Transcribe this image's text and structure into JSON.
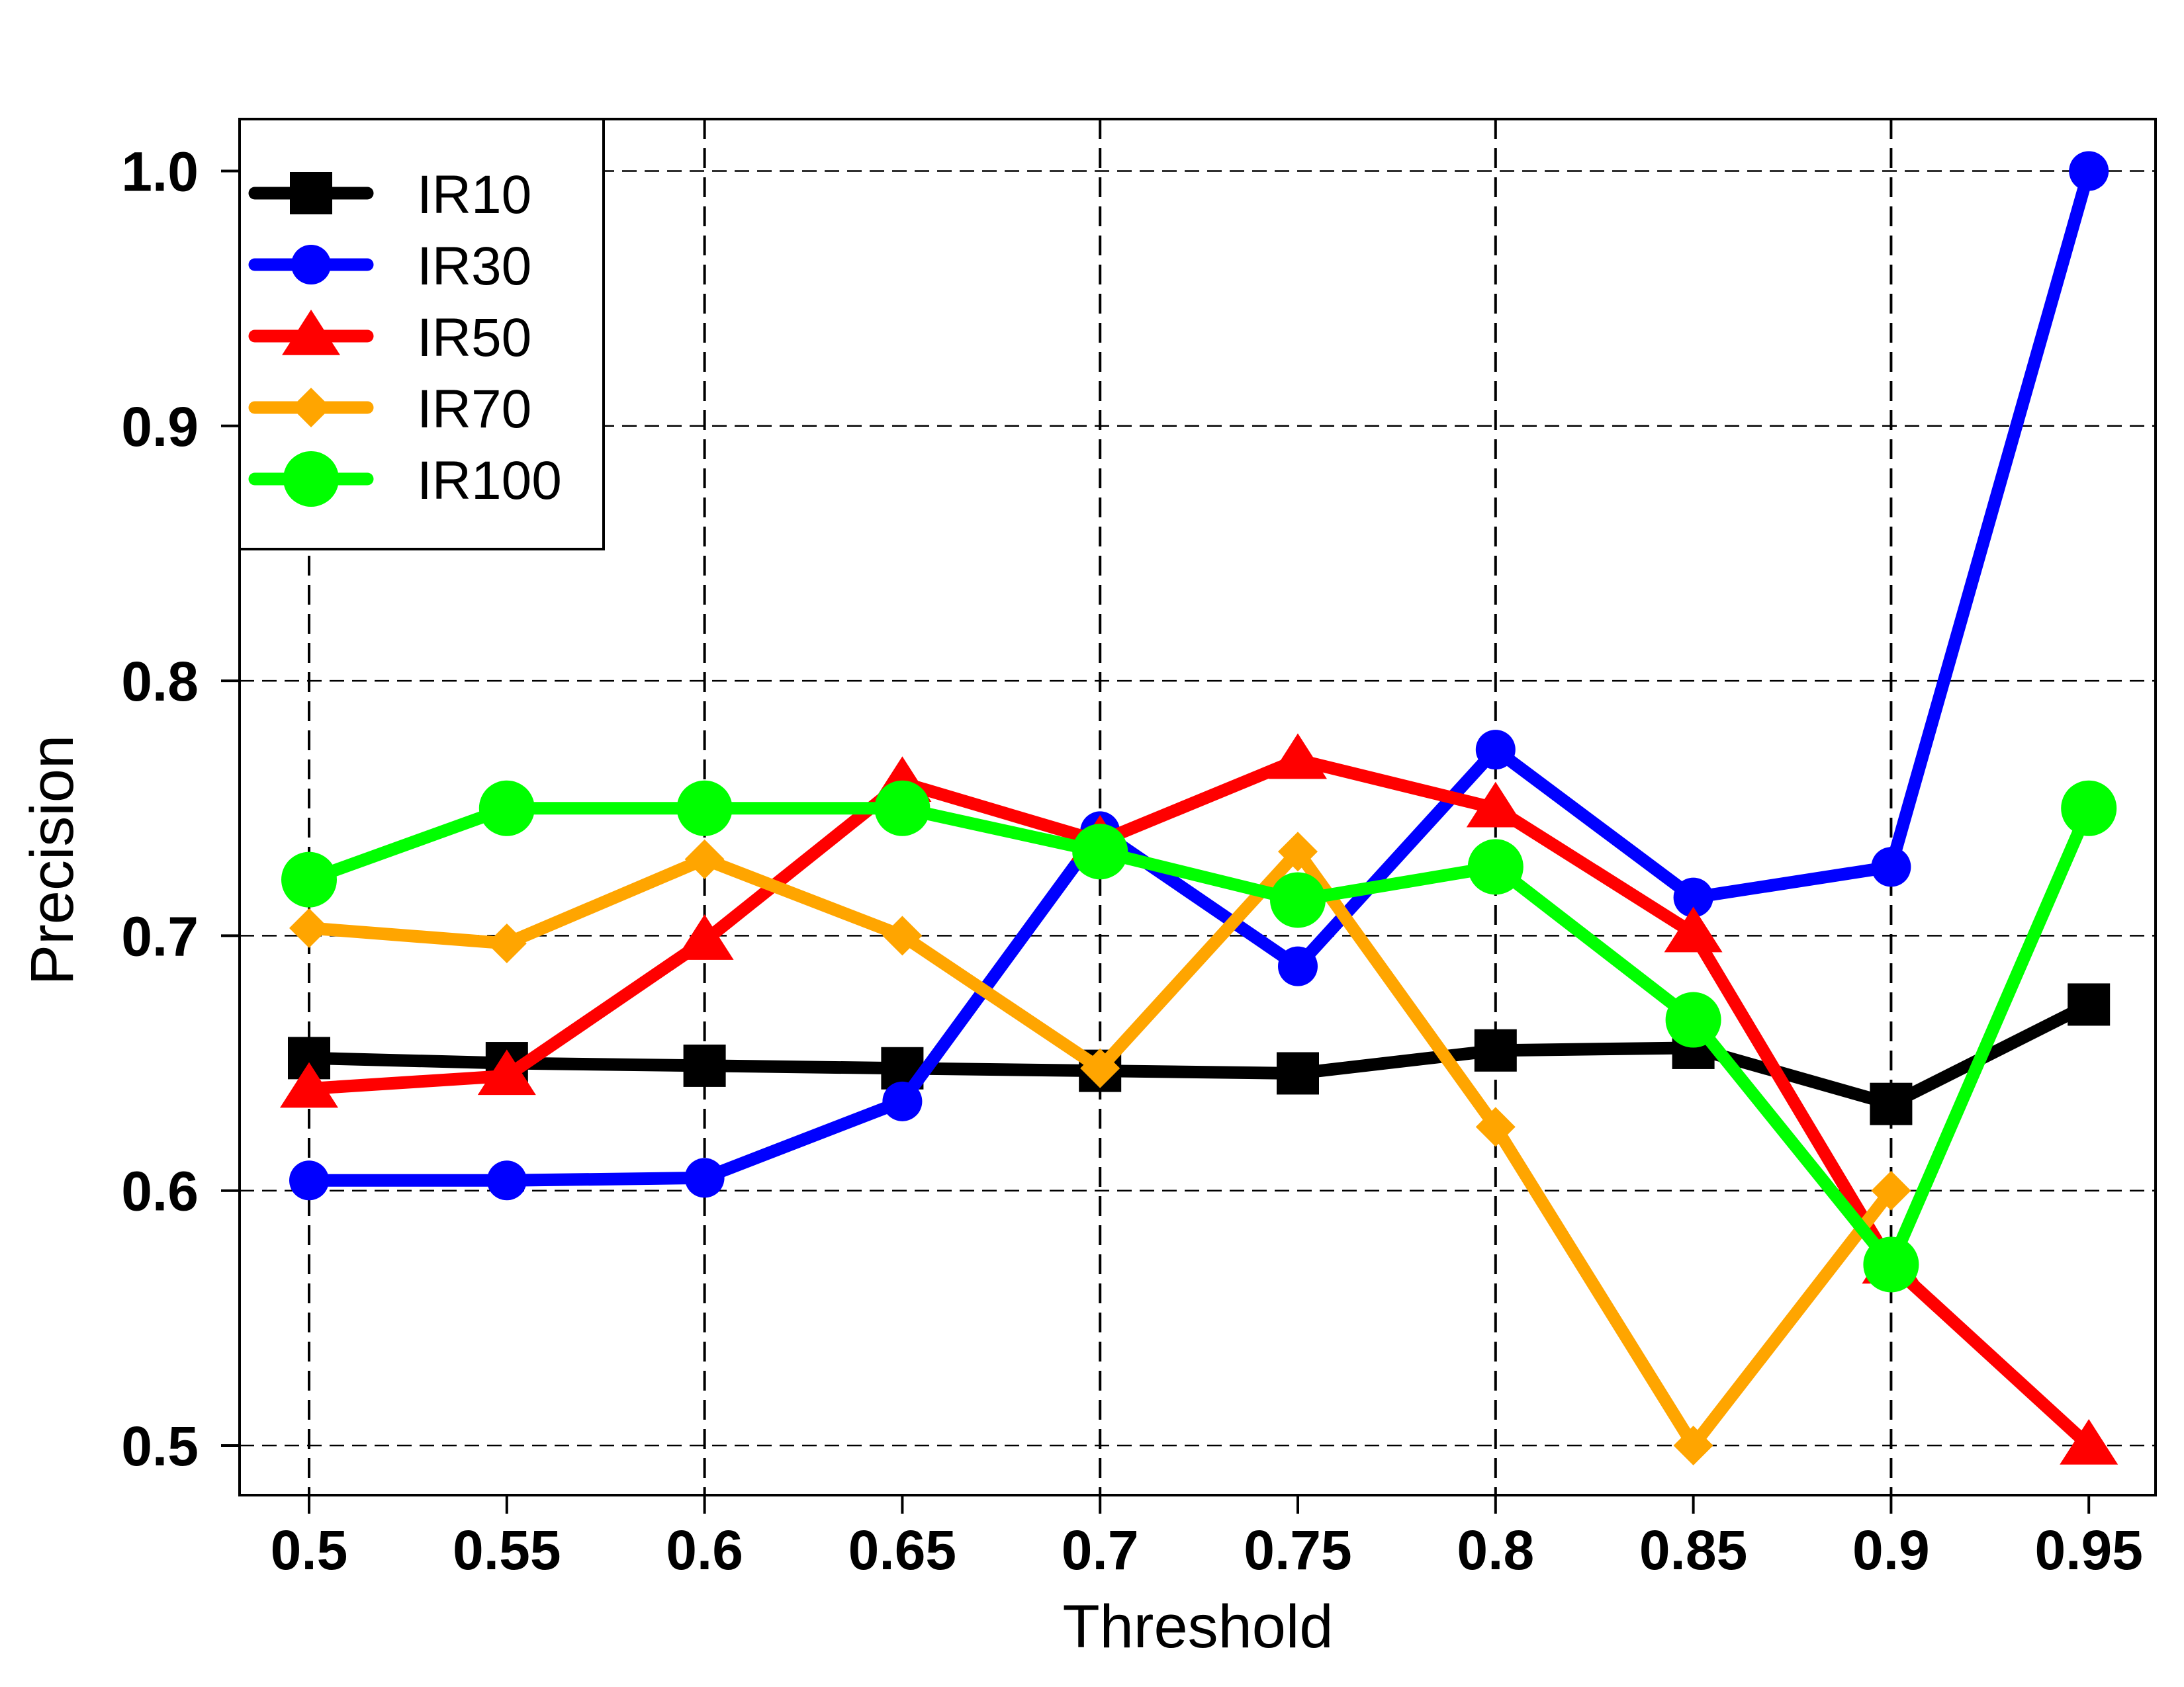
{
  "chart_data": {
    "type": "line",
    "title": "",
    "xlabel": "Threshold",
    "ylabel": "Precision",
    "x": [
      0.5,
      0.55,
      0.6,
      0.65,
      0.7,
      0.75,
      0.8,
      0.85,
      0.9,
      0.95
    ],
    "x_tick_labels": [
      "0.5",
      "0.55",
      "0.6",
      "0.65",
      "0.7",
      "0.75",
      "0.8",
      "0.85",
      "0.9",
      "0.95"
    ],
    "y_ticks": [
      0.5,
      0.6,
      0.7,
      0.8,
      0.9,
      1.0
    ],
    "y_tick_labels": [
      "0.5",
      "0.6",
      "0.7",
      "0.8",
      "0.9",
      "1.0"
    ],
    "ylim": [
      0.48,
      1.03
    ],
    "grid": true,
    "legend_position": "top-left",
    "series": [
      {
        "name": "IR10",
        "color": "#000000",
        "marker": "square",
        "values": [
          0.652,
          0.65,
          0.649,
          0.648,
          0.647,
          0.646,
          0.655,
          0.656,
          0.634,
          0.673
        ]
      },
      {
        "name": "IR30",
        "color": "#0000ff",
        "marker": "circle",
        "values": [
          0.604,
          0.604,
          0.605,
          0.635,
          0.741,
          0.688,
          0.773,
          0.715,
          0.727,
          1.0
        ]
      },
      {
        "name": "IR50",
        "color": "#ff0000",
        "marker": "triangle",
        "values": [
          0.64,
          0.645,
          0.698,
          0.76,
          0.737,
          0.769,
          0.75,
          0.701,
          0.571,
          0.5
        ]
      },
      {
        "name": "IR70",
        "color": "#ffa500",
        "marker": "diamond",
        "values": [
          0.703,
          0.697,
          0.73,
          0.7,
          0.648,
          0.733,
          0.625,
          0.5,
          0.6,
          null
        ]
      },
      {
        "name": "IR100",
        "color": "#00ff00",
        "marker": "big-circle",
        "values": [
          0.722,
          0.75,
          0.75,
          0.75,
          0.733,
          0.714,
          0.727,
          0.667,
          0.571,
          0.75
        ]
      }
    ]
  }
}
